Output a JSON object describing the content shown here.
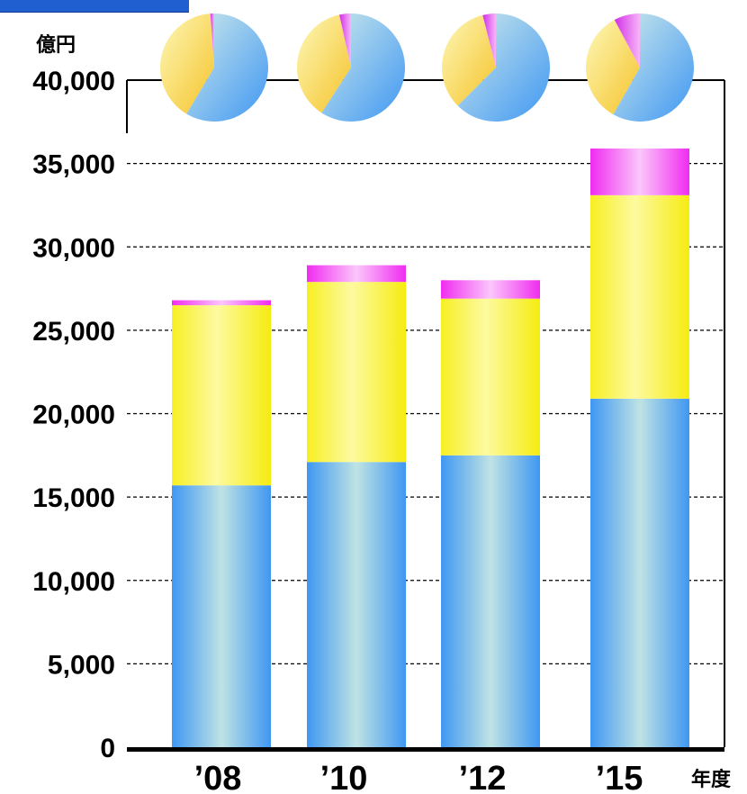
{
  "chart_data": {
    "type": "bar",
    "stacked": true,
    "ylabel": "億円",
    "xlabel": "年度",
    "ylim": [
      0,
      40000
    ],
    "yticks": [
      "0",
      "5,000",
      "10,000",
      "15,000",
      "20,000",
      "25,000",
      "30,000",
      "35,000",
      "40,000"
    ],
    "ytick_values": [
      0,
      5000,
      10000,
      15000,
      20000,
      25000,
      30000,
      35000,
      40000
    ],
    "categories": [
      "’08",
      "’10",
      "’12",
      "’15"
    ],
    "grid": "dashed horizontal",
    "series": [
      {
        "color": "#4aa3f5",
        "values": [
          15700,
          17100,
          17500,
          20900
        ]
      },
      {
        "color": "#fbf36a",
        "values": [
          10800,
          10800,
          9400,
          12200
        ]
      },
      {
        "color": "#f04ef0",
        "values": [
          300,
          1000,
          1100,
          2800
        ]
      }
    ],
    "pies": [
      {
        "category": "’08",
        "values": [
          15700,
          10800,
          300
        ]
      },
      {
        "category": "’10",
        "values": [
          17100,
          10800,
          1000
        ]
      },
      {
        "category": "’12",
        "values": [
          17500,
          9400,
          1100
        ]
      },
      {
        "category": "’15",
        "values": [
          20900,
          12200,
          2800
        ]
      }
    ]
  }
}
